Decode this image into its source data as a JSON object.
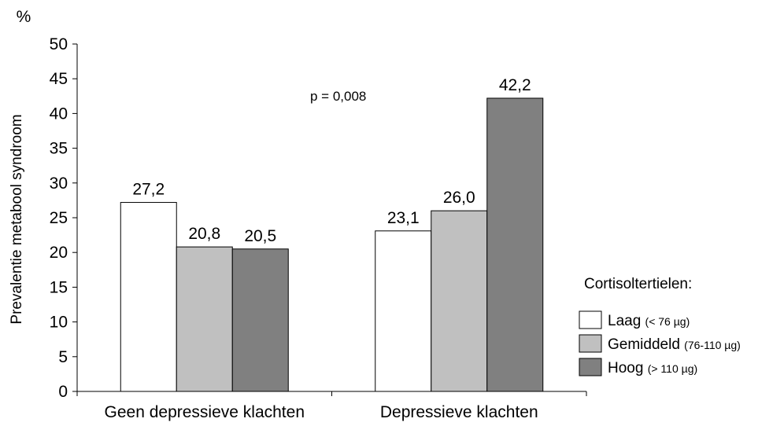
{
  "chart_data": {
    "type": "bar",
    "unit_label": "%",
    "ylabel": "Prevalentie metabool syndroom",
    "ylim": [
      0,
      50
    ],
    "yticks": [
      0,
      5,
      10,
      15,
      20,
      25,
      30,
      35,
      40,
      45,
      50
    ],
    "categories": [
      "Geen depressieve klachten",
      "Depressieve klachten"
    ],
    "series": [
      {
        "name": "Laag",
        "detail": "(< 76 µg)",
        "color": "#ffffff",
        "values": [
          27.2,
          23.1
        ],
        "value_labels": [
          "27,2",
          "23,1"
        ]
      },
      {
        "name": "Gemiddeld",
        "detail": "(76-110 µg)",
        "color": "#c0c0c0",
        "values": [
          20.8,
          26.0
        ],
        "value_labels": [
          "20,8",
          "26,0"
        ]
      },
      {
        "name": "Hoog",
        "detail": "(> 110 µg)",
        "color": "#808080",
        "values": [
          20.5,
          42.2
        ],
        "value_labels": [
          "20,5",
          "42,2"
        ]
      }
    ],
    "annotation": "p = 0,008",
    "legend_title": "Cortisoltertielen:",
    "legend_position": "right",
    "grid": false
  }
}
